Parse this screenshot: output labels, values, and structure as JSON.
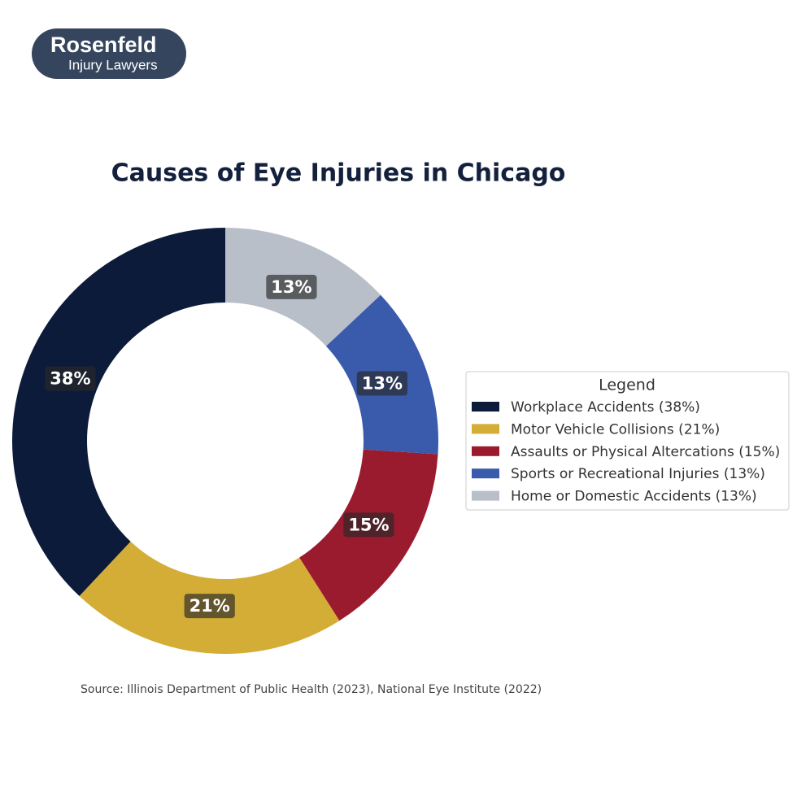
{
  "logo": {
    "name": "Rosenfeld",
    "tagline": "Injury Lawyers"
  },
  "chart_data": {
    "type": "pie",
    "title": "Causes of Eye Injuries in Chicago",
    "categories": [
      "Workplace Accidents (38%)",
      "Motor Vehicle Collisions (21%)",
      "Assaults or Physical Altercations (15%)",
      "Sports or Recreational Injuries (13%)",
      "Home or Domestic Accidents (13%)"
    ],
    "values": [
      38,
      21,
      15,
      13,
      13
    ],
    "value_labels": [
      "38%",
      "21%",
      "15%",
      "13%",
      "13%"
    ],
    "colors": [
      "#0d1b3a",
      "#d3ad36",
      "#9b1b2e",
      "#3a5bab",
      "#b8bfc9"
    ],
    "donut": true,
    "legend_title": "Legend",
    "legend": "right",
    "source": "Source: Illinois Department of Public Health (2023), National Eye Institute (2022)"
  }
}
